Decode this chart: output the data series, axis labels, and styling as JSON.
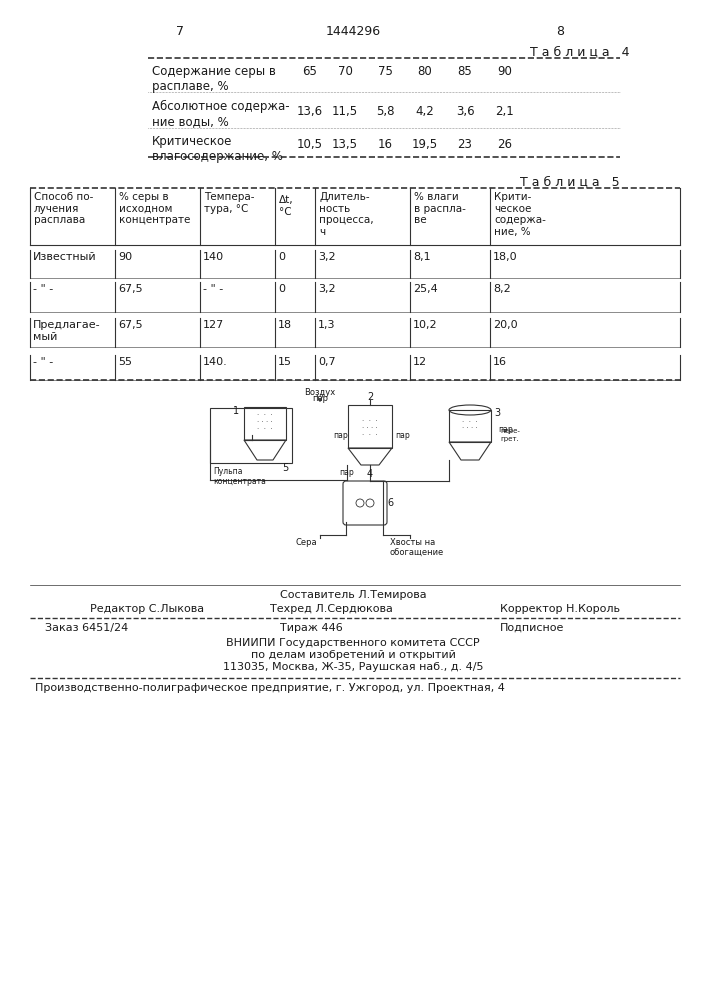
{
  "page_number_left": "7",
  "page_number_right": "8",
  "patent_number": "1444296",
  "table4_title": "Т а б л и ц а   4",
  "table4_row1_label": "Содержание серы в\nрасплаве, %",
  "table4_row1_values": [
    "65",
    "70",
    "75",
    "80",
    "85",
    "90"
  ],
  "table4_row2_label": "Абсолютное содержа-\nние воды, %",
  "table4_row2_values": [
    "13,6",
    "11,5",
    "5,8",
    "4,2",
    "3,6",
    "2,1"
  ],
  "table4_row3_label": "Критическое\nвлагосодержание, %",
  "table4_row3_values": [
    "10,5",
    "13,5",
    "16",
    "19,5",
    "23",
    "26"
  ],
  "table5_title": "Т а б л и ц а   5",
  "table5_headers": [
    "Способ по-\nлучения\nрасплава",
    "% серы в\nисходном\nконцентрате",
    "Темпера-\nтура, °С",
    "Δt,\n°С",
    "Длитель-\nность\nпроцесса,\nч",
    "% влаги\nв распла-\nве",
    "Крити-\nческое\nсодержа-\nние, %"
  ],
  "table5_rows": [
    [
      "Известный",
      "90",
      "140",
      "0",
      "3,2",
      "8,1",
      "18,0"
    ],
    [
      "- \" -",
      "67,5",
      "- \" -",
      "0",
      "3,2",
      "25,4",
      "8,2"
    ],
    [
      "Предлагае-\nмый",
      "67,5",
      "127",
      "18",
      "1,3",
      "10,2",
      "20,0"
    ],
    [
      "- \" -",
      "55",
      "140.",
      "15",
      "0,7",
      "12",
      "16"
    ]
  ],
  "footer_compiler": "Составитель Л.Темирова",
  "footer_editor": "Редактор С.Лыкова",
  "footer_techred": "Техред Л.Сердюкова",
  "footer_corrector": "Корректор Н.Король",
  "footer_order": "Заказ 6451/24",
  "footer_tirazh": "Тираж 446",
  "footer_podpisnoe": "Подписное",
  "footer_vnipi": "ВНИИПИ Государственного комитета СССР",
  "footer_po_delam": "по делам изобретений и открытий",
  "footer_address": "113035, Москва, Ж-35, Раушская наб., д. 4/5",
  "footer_enterprise": "Производственно-полиграфическое предприятие, г. Ужгород, ул. Проектная, 4",
  "bg_color": "#f5f5f0",
  "text_color": "#1a1a1a",
  "line_color": "#333333"
}
